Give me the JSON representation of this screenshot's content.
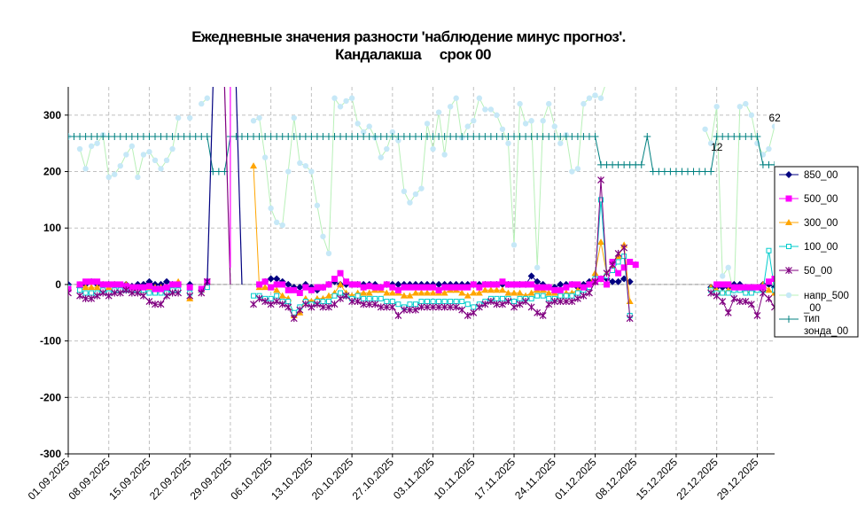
{
  "chart_data": {
    "type": "line",
    "title_line1": "Ежедневные значения разности 'наблюдение минус прогноз'.",
    "title_line2": "Кандалакша     срок 00",
    "ylim": [
      -300,
      350
    ],
    "yticks": [
      -300,
      -200,
      -100,
      0,
      100,
      200,
      300
    ],
    "x_start": "01.09.2025",
    "x_tick_labels": [
      "01.09.2025",
      "08.09.2025",
      "15.09.2025",
      "22.09.2025",
      "29.09.2025",
      "06.10.2025",
      "13.10.2025",
      "20.10.2025",
      "27.10.2025",
      "03.11.2025",
      "10.11.2025",
      "17.11.2025",
      "24.11.2025",
      "01.12.2025",
      "08.12.2025",
      "15.12.2025",
      "22.12.2025",
      "29.12.2025"
    ],
    "grid": true,
    "legend_position": "right",
    "annotations": [
      {
        "text": "12",
        "x_day": 111,
        "y": 237
      },
      {
        "text": "62",
        "x_day": 121,
        "y": 289
      }
    ],
    "series": [
      {
        "name": "850_00",
        "color": "#000080",
        "marker": "diamond",
        "kind": "line",
        "values": [
          0,
          null,
          -5,
          0,
          5,
          0,
          0,
          0,
          0,
          -3,
          0,
          -3,
          0,
          0,
          5,
          0,
          0,
          5,
          0,
          0,
          null,
          0,
          null,
          null,
          null,
          null,
          null,
          null,
          null,
          null,
          null,
          null,
          null,
          null,
          5,
          10,
          10,
          5,
          0,
          -5,
          -5,
          0,
          -5,
          -10,
          -5,
          0,
          5,
          0,
          0,
          0,
          0,
          0,
          0,
          0,
          -5,
          0,
          0,
          0,
          0,
          0,
          0,
          0,
          0,
          0,
          0,
          0,
          0,
          0,
          0,
          0,
          0,
          0,
          0,
          0,
          0,
          0,
          0,
          0,
          0,
          0,
          15,
          5,
          0,
          -5,
          -5,
          0,
          0,
          0,
          -5,
          0,
          5,
          10,
          10,
          10,
          5,
          5,
          10,
          5,
          null,
          null,
          null,
          null,
          null,
          null,
          null,
          null,
          null,
          null,
          null,
          null,
          null,
          -5,
          -5,
          -5,
          -5,
          0,
          0,
          -5,
          -5,
          -5,
          0,
          0,
          -5,
          -5,
          0,
          0,
          -5,
          -5,
          -5,
          -5,
          -5,
          -5,
          -10,
          -10,
          -10
        ]
      },
      {
        "name": "500_00",
        "color": "#ff00ff",
        "marker": "square",
        "kind": "line",
        "values": [
          -8,
          null,
          0,
          5,
          5,
          5,
          0,
          0,
          0,
          0,
          -3,
          -5,
          -5,
          -5,
          -3,
          -8,
          -8,
          -5,
          0,
          0,
          null,
          -5,
          null,
          -8,
          5,
          null,
          null,
          null,
          null,
          null,
          null,
          null,
          null,
          0,
          5,
          -5,
          0,
          0,
          -10,
          -10,
          -15,
          -5,
          -10,
          -5,
          -5,
          0,
          10,
          20,
          5,
          0,
          0,
          -5,
          -3,
          -5,
          -5,
          0,
          -5,
          -10,
          -5,
          -5,
          -5,
          -5,
          -5,
          -5,
          -10,
          -5,
          -5,
          -5,
          -5,
          -5,
          0,
          -5,
          0,
          0,
          0,
          5,
          0,
          0,
          0,
          0,
          0,
          -5,
          -5,
          -5,
          -10,
          -10,
          -5,
          0,
          0,
          -5,
          0,
          5,
          10,
          0,
          40,
          20,
          30,
          40,
          35,
          null,
          null,
          null,
          null,
          null,
          null,
          null,
          null,
          null,
          null,
          null,
          null,
          null,
          0,
          0,
          0,
          -5,
          -5,
          -5,
          -5,
          -5,
          -5,
          5,
          10,
          15,
          15,
          15,
          10,
          0,
          -5,
          -5,
          -5,
          0,
          -10,
          -10,
          -10,
          -10
        ]
      },
      {
        "name": "300_00",
        "color": "#ffa500",
        "marker": "triangle",
        "kind": "line",
        "values": [
          -5,
          null,
          0,
          -5,
          -5,
          -5,
          0,
          -5,
          0,
          -5,
          0,
          -5,
          -5,
          -10,
          -5,
          -5,
          -5,
          -5,
          -5,
          5,
          null,
          -25,
          null,
          -10,
          5,
          null,
          null,
          null,
          null,
          null,
          null,
          null,
          210,
          -5,
          -5,
          -5,
          -10,
          -20,
          -25,
          -55,
          -50,
          -25,
          -30,
          -25,
          -25,
          -20,
          -15,
          0,
          -15,
          -20,
          -15,
          -15,
          -15,
          -10,
          -10,
          -15,
          -15,
          -15,
          -20,
          -20,
          -15,
          -15,
          -15,
          -15,
          -15,
          -15,
          -10,
          -10,
          -15,
          -20,
          -15,
          -15,
          -10,
          -10,
          -10,
          -10,
          -15,
          -15,
          -15,
          -20,
          -15,
          -10,
          -10,
          -15,
          -15,
          -20,
          -15,
          -15,
          -10,
          -5,
          0,
          20,
          75,
          20,
          30,
          50,
          70,
          -30,
          null,
          null,
          null,
          null,
          null,
          null,
          null,
          null,
          null,
          null,
          null,
          null,
          null,
          -5,
          -10,
          -15,
          -10,
          -5,
          -5,
          -10,
          -10,
          -5,
          0,
          -10,
          -15,
          -10,
          -10,
          -10,
          -10,
          -15,
          -15,
          -20,
          -15,
          -10,
          -5,
          0,
          -5
        ]
      },
      {
        "name": "100_00",
        "color": "#00cccc",
        "marker": "open-square",
        "kind": "line",
        "values": [
          -5,
          null,
          -10,
          -15,
          -15,
          -15,
          -10,
          -15,
          -10,
          -10,
          -10,
          -10,
          -10,
          -10,
          -15,
          -15,
          -15,
          -15,
          -10,
          -10,
          null,
          -15,
          null,
          -10,
          -5,
          null,
          null,
          null,
          null,
          null,
          null,
          null,
          -20,
          -20,
          -25,
          -25,
          -20,
          -30,
          -30,
          -50,
          -40,
          -30,
          -35,
          -30,
          -30,
          -30,
          -20,
          -15,
          -20,
          -25,
          -20,
          -25,
          -25,
          -25,
          -25,
          -30,
          -30,
          -35,
          -40,
          -35,
          -35,
          -30,
          -30,
          -30,
          -30,
          -30,
          -30,
          -30,
          -30,
          -35,
          -40,
          -35,
          -30,
          -25,
          -25,
          -25,
          -25,
          -30,
          -25,
          -25,
          -25,
          -20,
          -20,
          -25,
          -25,
          -20,
          -20,
          -20,
          -15,
          -10,
          -5,
          10,
          150,
          15,
          25,
          40,
          50,
          -55,
          null,
          null,
          null,
          null,
          null,
          null,
          null,
          null,
          null,
          null,
          null,
          null,
          null,
          -10,
          -15,
          -15,
          -15,
          -10,
          -10,
          -15,
          -15,
          -10,
          -10,
          60,
          -10,
          -15,
          -15,
          -15,
          -10,
          -20,
          -25,
          -20,
          -20,
          -10,
          -5,
          -5,
          -10
        ]
      },
      {
        "name": "50_00",
        "color": "#800080",
        "marker": "x",
        "kind": "line",
        "values": [
          -15,
          null,
          -20,
          -25,
          -25,
          -20,
          -15,
          -20,
          -15,
          -15,
          -10,
          -15,
          -15,
          -20,
          -30,
          -35,
          -35,
          -20,
          -15,
          -15,
          null,
          -20,
          null,
          -15,
          5,
          null,
          null,
          null,
          null,
          null,
          null,
          null,
          -35,
          -25,
          -30,
          -35,
          -30,
          -35,
          -40,
          -60,
          -45,
          -35,
          -40,
          -35,
          -40,
          -40,
          -35,
          -25,
          -20,
          -30,
          -30,
          -35,
          -35,
          -35,
          -40,
          -40,
          -40,
          -55,
          -45,
          -45,
          -45,
          -40,
          -40,
          -40,
          -40,
          -40,
          -40,
          -40,
          -45,
          -55,
          -50,
          -40,
          -35,
          -30,
          -35,
          -35,
          -30,
          -40,
          -35,
          -30,
          -40,
          -50,
          -55,
          -35,
          -30,
          -30,
          -30,
          -30,
          -25,
          -20,
          -15,
          5,
          185,
          20,
          35,
          55,
          65,
          -60,
          null,
          null,
          null,
          null,
          null,
          null,
          null,
          null,
          null,
          null,
          null,
          null,
          null,
          -15,
          -20,
          -30,
          -50,
          -25,
          -30,
          -30,
          -35,
          -55,
          -15,
          -25,
          -40,
          -75,
          85,
          -20,
          -20,
          -25,
          -30,
          -35,
          -35,
          30,
          -20,
          -30,
          -35
        ]
      },
      {
        "name": "напр_500_00",
        "color": "#c6e8f7",
        "line_color": "#b8f0b8",
        "marker": "dot",
        "kind": "line",
        "values": [
          262,
          null,
          240,
          205,
          245,
          250,
          265,
          190,
          195,
          210,
          230,
          245,
          190,
          230,
          235,
          220,
          205,
          220,
          240,
          295,
          null,
          295,
          null,
          320,
          330,
          null,
          null,
          null,
          null,
          null,
          null,
          null,
          290,
          295,
          225,
          135,
          110,
          105,
          200,
          295,
          215,
          210,
          200,
          140,
          85,
          55,
          330,
          315,
          325,
          330,
          285,
          270,
          280,
          260,
          225,
          240,
          270,
          255,
          165,
          145,
          160,
          170,
          285,
          240,
          305,
          230,
          315,
          330,
          260,
          280,
          290,
          330,
          310,
          310,
          300,
          275,
          250,
          70,
          320,
          285,
          290,
          30,
          290,
          320,
          280,
          250,
          265,
          200,
          205,
          320,
          330,
          335,
          330,
          360,
          380,
          410,
          380,
          null,
          null,
          null,
          null,
          null,
          null,
          null,
          null,
          null,
          null,
          null,
          null,
          null,
          275,
          250,
          315,
          15,
          30,
          -20,
          315,
          320,
          300,
          250,
          230,
          240,
          280,
          350,
          40,
          0,
          -10,
          300,
          350,
          330,
          265,
          275,
          360,
          385
        ]
      },
      {
        "name": "тип зонда_00",
        "legend_line1": "тип",
        "legend_line2": "зонда_00",
        "color": "#008080",
        "marker": "plus",
        "kind": "step",
        "values": [
          262,
          262,
          262,
          262,
          262,
          262,
          262,
          262,
          262,
          262,
          262,
          262,
          262,
          262,
          262,
          262,
          262,
          262,
          262,
          262,
          262,
          262,
          262,
          262,
          262,
          200,
          200,
          200,
          262,
          262,
          262,
          262,
          262,
          262,
          262,
          262,
          262,
          262,
          262,
          262,
          262,
          262,
          262,
          262,
          262,
          262,
          262,
          262,
          262,
          262,
          262,
          262,
          262,
          262,
          262,
          262,
          262,
          262,
          262,
          262,
          262,
          262,
          262,
          262,
          262,
          262,
          262,
          262,
          262,
          262,
          262,
          262,
          262,
          262,
          262,
          262,
          262,
          262,
          262,
          262,
          262,
          262,
          262,
          262,
          262,
          262,
          262,
          262,
          262,
          262,
          262,
          262,
          212,
          212,
          212,
          212,
          212,
          212,
          212,
          212,
          262,
          200,
          200,
          200,
          200,
          200,
          200,
          200,
          200,
          200,
          200,
          200,
          262,
          262,
          262,
          262,
          262,
          262,
          262,
          262,
          212,
          212,
          212,
          212,
          212,
          212,
          262,
          262,
          262,
          262,
          262,
          262,
          262,
          262,
          262,
          262,
          262,
          262,
          262
        ]
      }
    ],
    "spikes": [
      {
        "color": "#000080",
        "from_day": 24,
        "to_day": 25,
        "y_from": 0,
        "y_to": 350
      },
      {
        "color": "#800080",
        "from_day": 27,
        "to_day": 28,
        "y_from": 350,
        "y_to": 0
      },
      {
        "color": "#ff00ff",
        "from_day": 28,
        "to_day": 28,
        "y_from": 350,
        "y_to": 30
      },
      {
        "color": "#000080",
        "from_day": 29,
        "to_day": 30,
        "y_from": 350,
        "y_to": 0
      }
    ]
  }
}
